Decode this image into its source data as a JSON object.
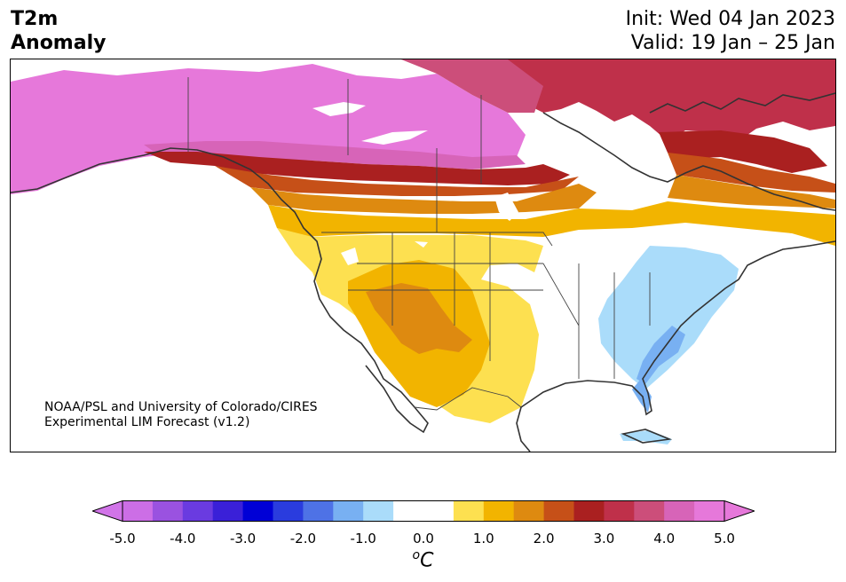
{
  "header": {
    "title_line1": "T2m",
    "title_line2": "Anomaly",
    "init": "Init: Wed 04 Jan 2023",
    "valid": "Valid: 19 Jan – 25 Jan"
  },
  "credit": {
    "line1": "NOAA/PSL and University of Colorado/CIRES",
    "line2": "Experimental LIM Forecast (v1.2)"
  },
  "colorbar": {
    "unit_base": "C",
    "unit_sup": "o",
    "ticks": [
      "-5.0",
      "-4.0",
      "-3.0",
      "-2.0",
      "-1.0",
      "0.0",
      "1.0",
      "2.0",
      "3.0",
      "4.0",
      "5.0"
    ],
    "colors": [
      "#cc6ee6",
      "#9a52e0",
      "#6a3be0",
      "#3a20d8",
      "#0000d6",
      "#2a3cde",
      "#4e72e6",
      "#78b0f2",
      "#aadcfa",
      "#ffffff",
      "#ffffff",
      "#fde050",
      "#f2b400",
      "#de8a10",
      "#c65018",
      "#aa2020",
      "#bf304a",
      "#cc4e7a",
      "#d764b8",
      "#e678da"
    ],
    "left_arrow_color": "#d174e8",
    "right_arrow_color": "#e678da"
  },
  "map": {
    "region": "North America",
    "variable": "2m temperature anomaly",
    "colors": {
      "magenta": "#e678da",
      "pink": "#d764b8",
      "rose": "#cc4e7a",
      "crimson": "#bf304a",
      "red": "#aa2020",
      "orange_red": "#c65018",
      "orange": "#de8a10",
      "gold": "#f2b400",
      "yellow": "#fde050",
      "light_blue": "#aadcfa",
      "blue": "#78b0f2",
      "coast": "#333333"
    }
  }
}
